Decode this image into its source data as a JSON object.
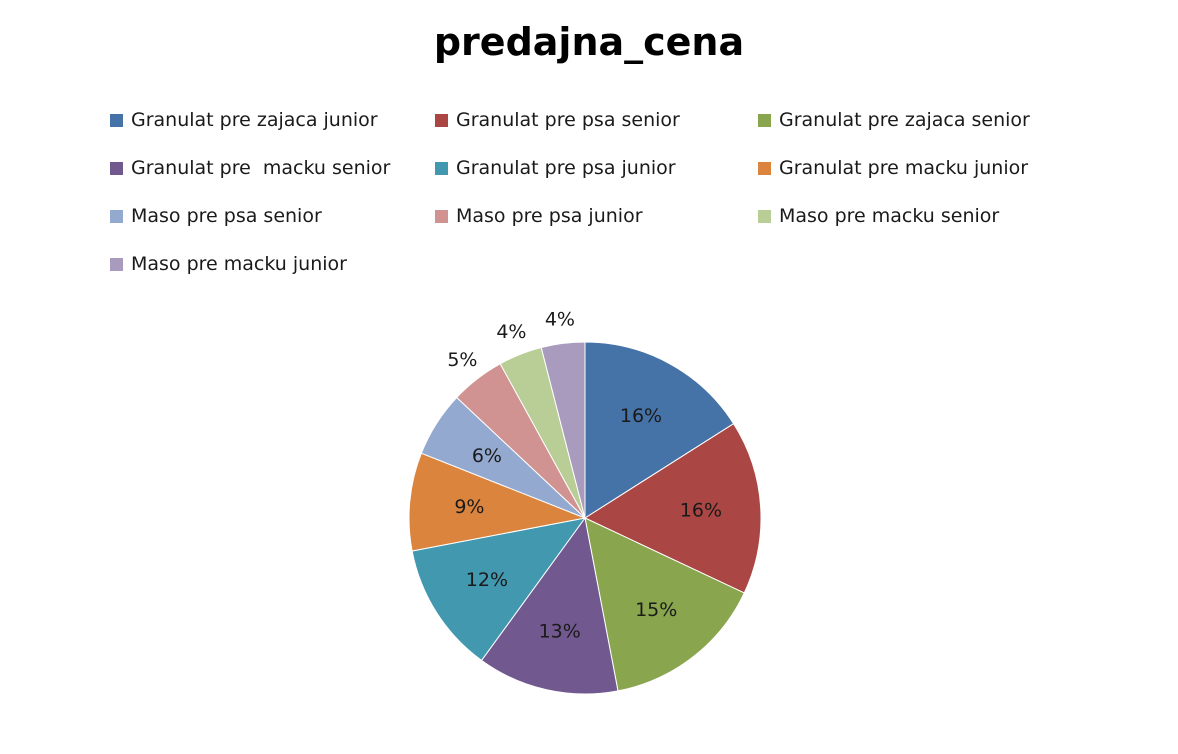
{
  "chart_data": {
    "type": "pie",
    "title": "predajna_cena",
    "legend_position": "top",
    "categories": [
      "Granulat pre zajaca junior",
      "Granulat pre psa senior",
      "Granulat pre zajaca senior",
      "Granulat pre  macku senior",
      "Granulat pre psa junior",
      "Granulat pre macku junior",
      "Maso pre psa senior",
      "Maso pre psa junior",
      "Maso pre macku senior",
      "Maso pre macku junior"
    ],
    "values": [
      16,
      16,
      15,
      13,
      12,
      9,
      6,
      5,
      4,
      4
    ],
    "labels": [
      "16%",
      "16%",
      "15%",
      "13%",
      "12%",
      "9%",
      "6%",
      "5%",
      "4%",
      "4%"
    ],
    "colors": [
      "#4572A7",
      "#AA4643",
      "#89A54E",
      "#71588F",
      "#4198AF",
      "#DB843D",
      "#93A9CF",
      "#D19392",
      "#B9CD96",
      "#A99BBD"
    ],
    "start_angle_deg": 0,
    "direction": "clockwise"
  }
}
